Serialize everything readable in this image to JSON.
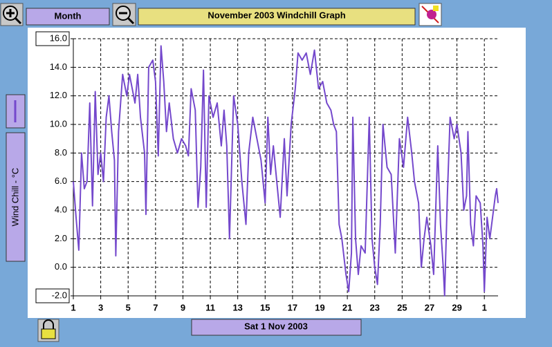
{
  "toolbar": {
    "range_button": "Month"
  },
  "chart_data": {
    "type": "line",
    "title": "November 2003 Windchill Graph",
    "ylabel": "Wind Chill - °C",
    "xlim": [
      1,
      32
    ],
    "ylim": [
      -2,
      16
    ],
    "xticks": [
      1,
      3,
      5,
      7,
      9,
      11,
      13,
      15,
      17,
      19,
      21,
      23,
      25,
      27,
      29,
      {
        "value": 31,
        "label": "1"
      }
    ],
    "yticks": [
      {
        "value": 16,
        "label": "16.0"
      },
      {
        "value": 14,
        "label": "14.0"
      },
      {
        "value": 12,
        "label": "12.0"
      },
      {
        "value": 10,
        "label": "10.0"
      },
      {
        "value": 8,
        "label": "8.0"
      },
      {
        "value": 6,
        "label": "6.0"
      },
      {
        "value": 4,
        "label": "4.0"
      },
      {
        "value": 2,
        "label": "2.0"
      },
      {
        "value": 0,
        "label": "0.0"
      },
      {
        "value": -2,
        "label": "-2.0"
      }
    ],
    "grid": true,
    "series": [
      {
        "color": "#7448cc",
        "x": [
          1.0,
          1.2,
          1.4,
          1.6,
          1.8,
          2.0,
          2.2,
          2.4,
          2.6,
          2.8,
          3.0,
          3.2,
          3.4,
          3.6,
          3.8,
          4.0,
          4.1,
          4.3,
          4.6,
          4.9,
          5.1,
          5.3,
          5.5,
          5.7,
          5.9,
          6.2,
          6.3,
          6.5,
          6.8,
          7.0,
          7.2,
          7.4,
          7.6,
          7.8,
          8.0,
          8.3,
          8.6,
          8.9,
          9.2,
          9.4,
          9.6,
          9.9,
          10.1,
          10.3,
          10.5,
          10.7,
          10.9,
          11.2,
          11.5,
          11.8,
          12.0,
          12.2,
          12.4,
          12.7,
          13.0,
          13.3,
          13.6,
          13.8,
          14.1,
          14.4,
          14.7,
          15.0,
          15.2,
          15.4,
          15.6,
          15.9,
          16.1,
          16.4,
          16.6,
          16.9,
          17.2,
          17.4,
          17.7,
          18.0,
          18.3,
          18.6,
          18.9,
          19.2,
          19.5,
          19.8,
          20.0,
          20.2,
          20.4,
          20.6,
          20.9,
          21.1,
          21.3,
          21.4,
          21.6,
          21.8,
          22.0,
          22.3,
          22.6,
          22.8,
          23.0,
          23.2,
          23.4,
          23.6,
          23.9,
          24.2,
          24.5,
          24.8,
          25.1,
          25.4,
          25.7,
          25.9,
          26.2,
          26.4,
          26.6,
          26.8,
          27.1,
          27.3,
          27.6,
          27.8,
          28.0,
          28.1,
          28.3,
          28.5,
          28.8,
          29.0,
          29.3,
          29.5,
          29.7,
          29.8,
          30.0,
          30.2,
          30.4,
          30.7,
          30.9,
          31.0,
          31.2,
          31.4,
          31.6,
          31.8,
          31.9,
          32.0
        ],
        "values": [
          6.0,
          3.5,
          1.2,
          8.0,
          5.5,
          6.0,
          11.5,
          4.3,
          12.3,
          6.5,
          8.0,
          6.0,
          10.5,
          12.0,
          9.5,
          7.5,
          0.8,
          9.5,
          13.5,
          12.0,
          13.5,
          12.5,
          11.5,
          13.5,
          10.5,
          8.0,
          3.7,
          14.0,
          14.5,
          13.0,
          7.8,
          15.5,
          13.0,
          9.5,
          11.5,
          9.0,
          8.0,
          9.0,
          8.5,
          7.8,
          12.5,
          11.0,
          4.2,
          7.0,
          13.8,
          4.2,
          12.0,
          10.5,
          11.5,
          8.5,
          11.0,
          8.5,
          2.0,
          12.0,
          10.0,
          6.0,
          3.0,
          8.0,
          10.5,
          9.0,
          7.5,
          4.5,
          10.5,
          6.5,
          8.5,
          5.5,
          3.5,
          9.0,
          5.0,
          10.0,
          12.5,
          15.0,
          14.5,
          15.0,
          13.5,
          15.2,
          12.5,
          13.0,
          11.5,
          11.0,
          10.0,
          9.5,
          3.0,
          2.0,
          -0.5,
          -1.7,
          1.0,
          10.5,
          2.0,
          -0.5,
          1.5,
          1.0,
          10.5,
          2.0,
          0.0,
          -1.2,
          3.0,
          10.0,
          7.0,
          6.5,
          1.0,
          9.0,
          7.0,
          10.5,
          8.0,
          6.0,
          4.5,
          0.0,
          2.0,
          3.5,
          1.5,
          -0.5,
          8.5,
          3.0,
          0.0,
          -2.0,
          5.0,
          10.5,
          9.0,
          10.0,
          8.0,
          4.0,
          5.0,
          9.5,
          3.0,
          1.5,
          5.0,
          4.5,
          1.5,
          -1.7,
          3.5,
          2.0,
          3.5,
          5.0,
          5.5,
          4.5
        ]
      }
    ]
  },
  "footer": {
    "date_button": "Sat 1 Nov 2003"
  }
}
